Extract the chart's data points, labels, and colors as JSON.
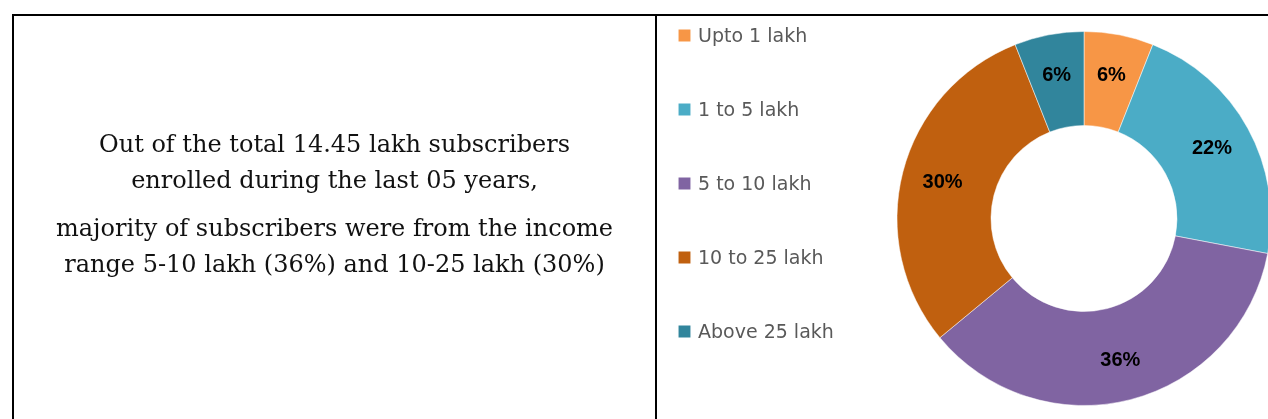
{
  "chart_data": [
    {
      "type": "other",
      "annotations": [
        "Out of the total 14.45 lakh subscribers enrolled during the last 05 years,",
        "majority of subscribers were from the income range 5-10 lakh (36%) and 10-25 lakh (30%)"
      ]
    },
    {
      "type": "donut",
      "categories": [
        "Upto 1 lakh",
        "1 to 5 lakh",
        "5 to 10 lakh",
        "10 to 25 lakh",
        "Above 25 lakh"
      ],
      "values": [
        6,
        22,
        36,
        30,
        6
      ],
      "colors": [
        "#f79646",
        "#4bacc6",
        "#8064a2",
        "#c0600f",
        "#31859c"
      ],
      "value_labels": [
        "6%",
        "22%",
        "36%",
        "30%",
        "6%"
      ],
      "legend": "left"
    }
  ]
}
